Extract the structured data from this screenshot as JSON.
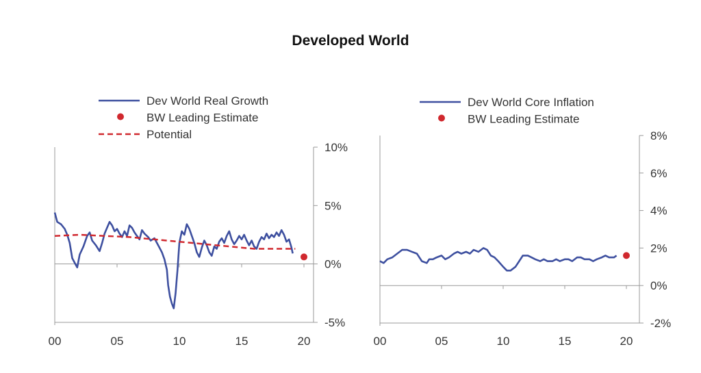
{
  "page": {
    "title": "Developed World"
  },
  "colors": {
    "series_line": "#3d4f9f",
    "estimate": "#d0282e",
    "axis": "#999999"
  },
  "chart_data": [
    {
      "type": "line",
      "title": "",
      "xlabel": "",
      "ylabel": "",
      "legend": {
        "placement": "top",
        "entries": [
          "Dev World Real Growth",
          "BW Leading Estimate",
          "Potential"
        ]
      },
      "x_ticks": [
        "00",
        "05",
        "10",
        "15",
        "20"
      ],
      "y_ticks": [
        "10%",
        "5%",
        "0%",
        "-5%"
      ],
      "ylim": [
        -5,
        10
      ],
      "xlim": [
        2000,
        2020.5
      ],
      "grid": false,
      "series": [
        {
          "name": "Dev World Real Growth",
          "style": "line",
          "x": [
            2000.0,
            2000.2,
            2000.5,
            2000.8,
            2001.0,
            2001.2,
            2001.4,
            2001.6,
            2001.8,
            2002.0,
            2002.3,
            2002.6,
            2002.8,
            2003.0,
            2003.3,
            2003.6,
            2003.8,
            2004.0,
            2004.2,
            2004.4,
            2004.6,
            2004.8,
            2005.0,
            2005.2,
            2005.4,
            2005.6,
            2005.8,
            2006.0,
            2006.2,
            2006.4,
            2006.6,
            2006.8,
            2007.0,
            2007.2,
            2007.5,
            2007.7,
            2008.0,
            2008.2,
            2008.4,
            2008.6,
            2008.8,
            2009.0,
            2009.1,
            2009.25,
            2009.4,
            2009.55,
            2009.7,
            2009.85,
            2010.0,
            2010.2,
            2010.4,
            2010.6,
            2010.8,
            2011.0,
            2011.2,
            2011.4,
            2011.6,
            2011.8,
            2012.0,
            2012.2,
            2012.4,
            2012.6,
            2012.8,
            2013.0,
            2013.2,
            2013.4,
            2013.6,
            2013.8,
            2014.0,
            2014.2,
            2014.4,
            2014.6,
            2014.8,
            2015.0,
            2015.2,
            2015.4,
            2015.6,
            2015.8,
            2016.0,
            2016.2,
            2016.4,
            2016.6,
            2016.8,
            2017.0,
            2017.2,
            2017.4,
            2017.6,
            2017.8,
            2018.0,
            2018.2,
            2018.4,
            2018.6,
            2018.8,
            2019.0,
            2019.1
          ],
          "values": [
            4.4,
            3.6,
            3.4,
            3.0,
            2.5,
            1.8,
            0.5,
            0.1,
            -0.3,
            0.8,
            1.5,
            2.4,
            2.7,
            2.0,
            1.6,
            1.1,
            1.8,
            2.6,
            3.1,
            3.6,
            3.3,
            2.8,
            3.0,
            2.6,
            2.3,
            2.8,
            2.4,
            3.3,
            3.1,
            2.7,
            2.4,
            2.1,
            2.9,
            2.6,
            2.3,
            2.0,
            2.2,
            1.8,
            1.4,
            1.0,
            0.4,
            -0.5,
            -1.8,
            -2.8,
            -3.4,
            -3.8,
            -2.5,
            -0.5,
            1.8,
            2.8,
            2.5,
            3.4,
            3.0,
            2.4,
            1.8,
            1.0,
            0.6,
            1.4,
            2.0,
            1.6,
            1.0,
            0.7,
            1.5,
            1.3,
            1.9,
            2.2,
            1.8,
            2.4,
            2.8,
            2.1,
            1.7,
            2.0,
            2.4,
            2.1,
            2.5,
            2.0,
            1.6,
            2.0,
            1.5,
            1.3,
            1.9,
            2.3,
            2.1,
            2.6,
            2.2,
            2.5,
            2.3,
            2.7,
            2.4,
            2.9,
            2.5,
            1.9,
            2.1,
            1.4,
            0.9
          ]
        },
        {
          "name": "Potential",
          "style": "dashed",
          "x": [
            2000,
            2002,
            2004,
            2006,
            2008,
            2010,
            2012,
            2014,
            2016,
            2018,
            2019.3
          ],
          "values": [
            2.4,
            2.5,
            2.4,
            2.3,
            2.1,
            1.9,
            1.7,
            1.5,
            1.3,
            1.3,
            1.3
          ]
        },
        {
          "name": "BW Leading Estimate",
          "style": "point",
          "x": [
            2020.0
          ],
          "values": [
            0.6
          ]
        }
      ]
    },
    {
      "type": "line",
      "title": "",
      "xlabel": "",
      "ylabel": "",
      "legend": {
        "placement": "top",
        "entries": [
          "Dev World Core Inflation",
          "BW Leading Estimate"
        ]
      },
      "x_ticks": [
        "00",
        "05",
        "10",
        "15",
        "20"
      ],
      "y_ticks": [
        "8%",
        "6%",
        "4%",
        "2%",
        "0%",
        "-2%"
      ],
      "ylim": [
        -2,
        8
      ],
      "xlim": [
        2000,
        2020.5
      ],
      "grid": false,
      "series": [
        {
          "name": "Dev World Core Inflation",
          "style": "line",
          "x": [
            2000.0,
            2000.3,
            2000.6,
            2001.0,
            2001.4,
            2001.8,
            2002.2,
            2002.6,
            2003.0,
            2003.4,
            2003.8,
            2004.0,
            2004.3,
            2004.6,
            2005.0,
            2005.3,
            2005.6,
            2006.0,
            2006.3,
            2006.6,
            2007.0,
            2007.3,
            2007.6,
            2008.0,
            2008.4,
            2008.7,
            2009.0,
            2009.3,
            2009.6,
            2010.0,
            2010.3,
            2010.6,
            2011.0,
            2011.3,
            2011.6,
            2012.0,
            2012.3,
            2012.6,
            2013.0,
            2013.3,
            2013.6,
            2014.0,
            2014.3,
            2014.6,
            2015.0,
            2015.3,
            2015.6,
            2016.0,
            2016.3,
            2016.6,
            2017.0,
            2017.3,
            2017.6,
            2018.0,
            2018.3,
            2018.6,
            2019.0,
            2019.2
          ],
          "values": [
            1.3,
            1.2,
            1.4,
            1.5,
            1.7,
            1.9,
            1.9,
            1.8,
            1.7,
            1.3,
            1.2,
            1.4,
            1.4,
            1.5,
            1.6,
            1.4,
            1.5,
            1.7,
            1.8,
            1.7,
            1.8,
            1.7,
            1.9,
            1.8,
            2.0,
            1.9,
            1.6,
            1.5,
            1.3,
            1.0,
            0.8,
            0.8,
            1.0,
            1.3,
            1.6,
            1.6,
            1.5,
            1.4,
            1.3,
            1.4,
            1.3,
            1.3,
            1.4,
            1.3,
            1.4,
            1.4,
            1.3,
            1.5,
            1.5,
            1.4,
            1.4,
            1.3,
            1.4,
            1.5,
            1.6,
            1.5,
            1.5,
            1.6
          ]
        },
        {
          "name": "BW Leading Estimate",
          "style": "point",
          "x": [
            2020.0
          ],
          "values": [
            1.6
          ]
        }
      ]
    }
  ]
}
